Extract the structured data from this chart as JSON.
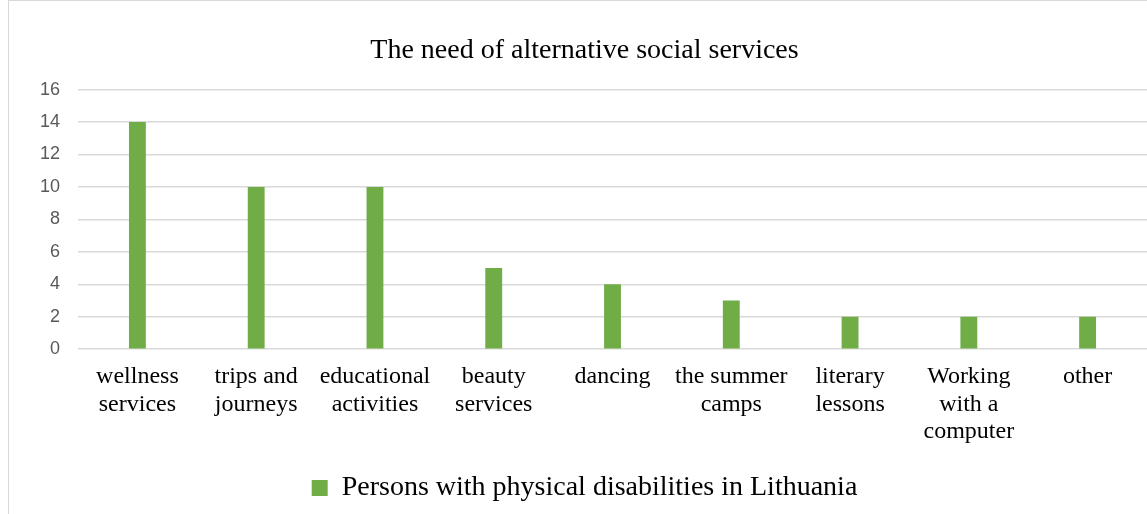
{
  "chart_data": {
    "type": "bar",
    "title": "The need of alternative social services",
    "categories": [
      "wellness services",
      "trips and journeys",
      "educational activities",
      "beauty services",
      "dancing",
      "the summer camps",
      "literary lessons",
      "Working with a computer",
      "other"
    ],
    "series": [
      {
        "name": "Persons with physical disabilities in Lithuania",
        "color": "#70ad47",
        "values": [
          14,
          10,
          10,
          5,
          4,
          3,
          2,
          2,
          2
        ]
      }
    ],
    "ylim": [
      0,
      16
    ],
    "yticks": [
      0,
      2,
      4,
      6,
      8,
      10,
      12,
      14,
      16
    ],
    "grid": "y",
    "legend": "bottom"
  }
}
